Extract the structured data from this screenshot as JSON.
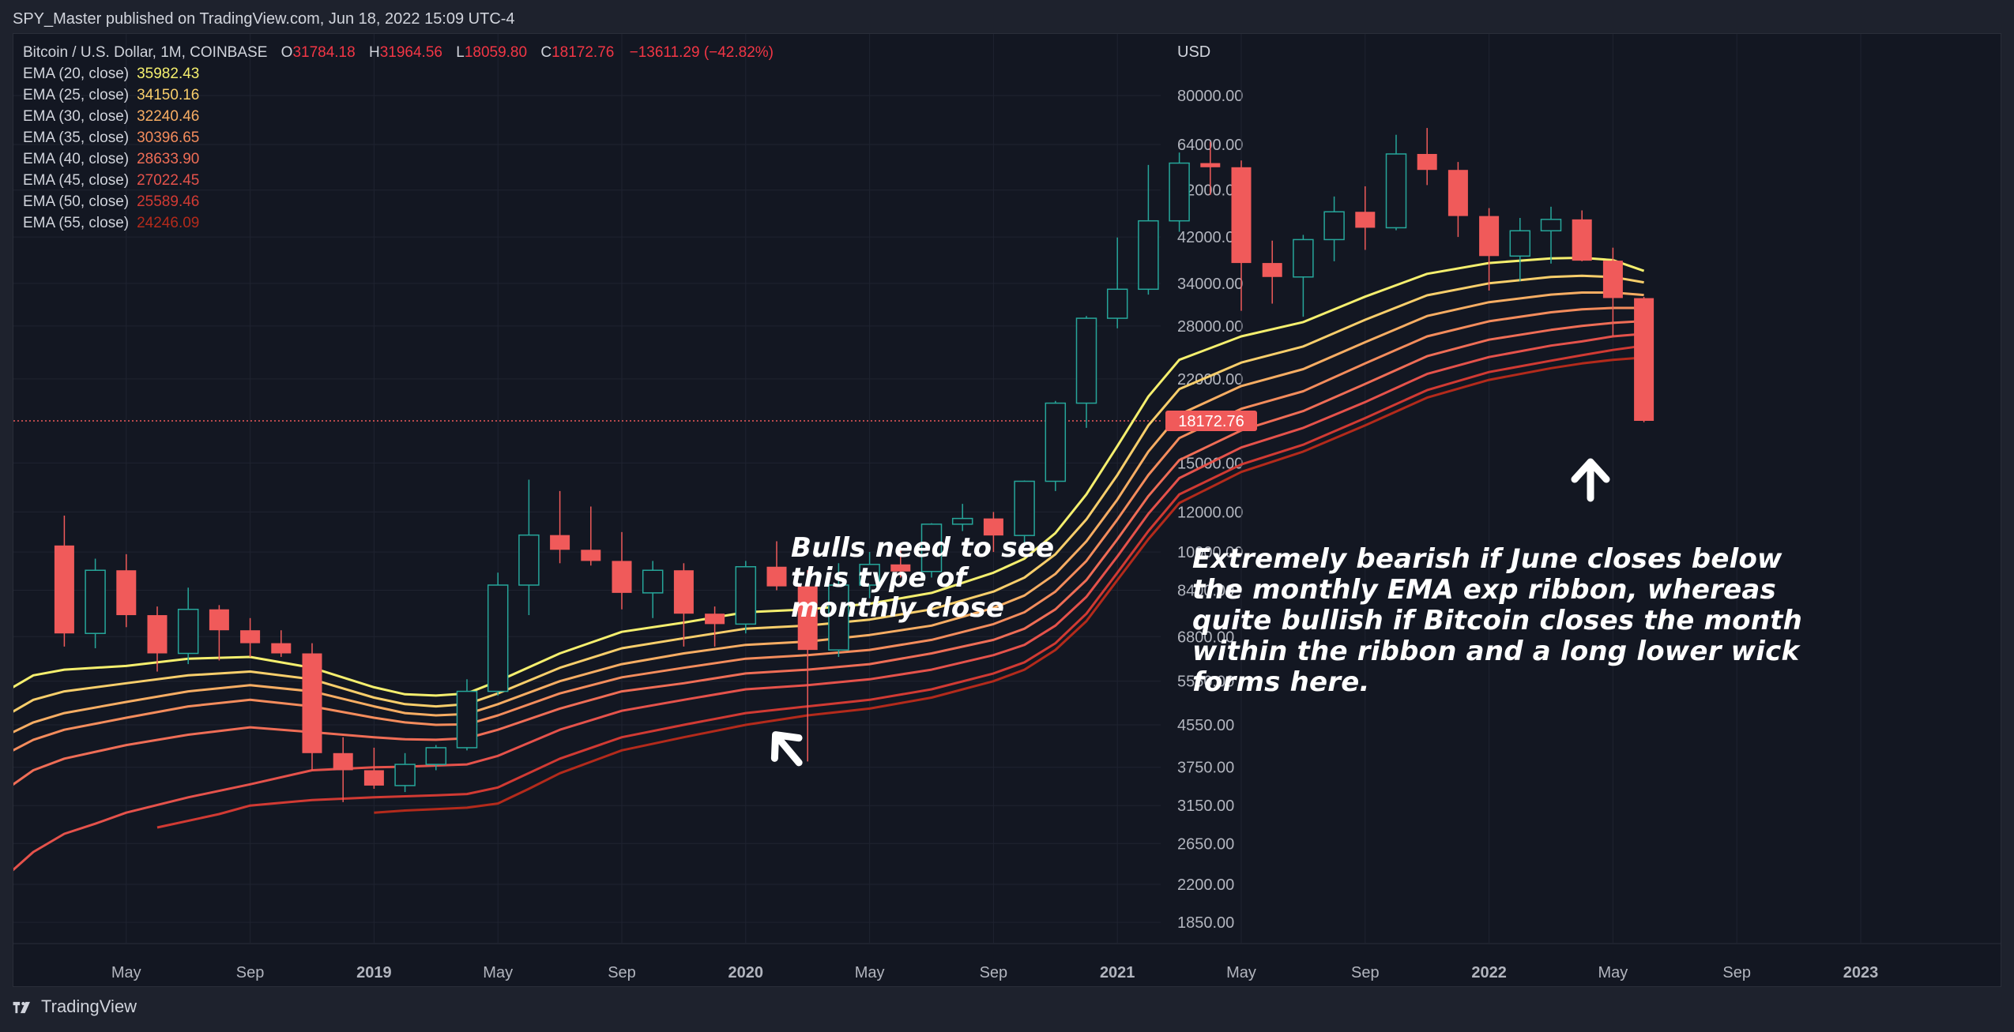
{
  "header": {
    "published": "SPY_Master published on TradingView.com, Jun 18, 2022 15:09 UTC-4"
  },
  "footer": {
    "brand": "TradingView"
  },
  "colors": {
    "background": "#131722",
    "grid": "#1f2330",
    "text": "#d1d4dc",
    "up_candle": "#26a69a",
    "down_candle": "#f05a5a",
    "last_price": "#f05a5a"
  },
  "legend": {
    "symbol": "Bitcoin / U.S. Dollar, 1M, COINBASE",
    "o_key": "O",
    "o_val": "31784.18",
    "h_key": "H",
    "h_val": "31964.56",
    "l_key": "L",
    "l_val": "18059.80",
    "c_key": "C",
    "c_val": "18172.76",
    "change": "−13611.29 (−42.82%)",
    "emas": [
      {
        "label": "EMA (20, close)",
        "value": "35982.43",
        "color": "#f5ef6e"
      },
      {
        "label": "EMA (25, close)",
        "value": "34150.16",
        "color": "#f8ce6b"
      },
      {
        "label": "EMA (30, close)",
        "value": "32240.46",
        "color": "#f7ad63"
      },
      {
        "label": "EMA (35, close)",
        "value": "30396.65",
        "color": "#f48c5c"
      },
      {
        "label": "EMA (40, close)",
        "value": "28633.90",
        "color": "#ef6d56"
      },
      {
        "label": "EMA (45, close)",
        "value": "27022.45",
        "color": "#e5524b"
      },
      {
        "label": "EMA (50, close)",
        "value": "25589.46",
        "color": "#d13a33"
      },
      {
        "label": "EMA (55, close)",
        "value": "24246.09",
        "color": "#b32a1b"
      }
    ]
  },
  "annotations": {
    "bulls": "Bulls need to see this type of monthly close",
    "bearish": "Extremely bearish if June closes below the monthly EMA exp ribbon, whereas quite bullish if Bitcoin closes the month within the ribbon and a long lower wick forms here."
  },
  "chart_data": {
    "type": "candlestick",
    "title": "Bitcoin / U.S. Dollar, 1M, COINBASE",
    "y_scale": "log",
    "y_unit": "USD",
    "ylim": [
      1600,
      95000
    ],
    "y_ticks": [
      "80000.00",
      "64000.00",
      "52000.00",
      "42000.00",
      "34000.00",
      "28000.00",
      "22000.00",
      "15000.00",
      "12000.00",
      "10000.00",
      "8400.00",
      "6800.00",
      "5550.00",
      "4550.00",
      "3750.00",
      "3150.00",
      "2650.00",
      "2200.00",
      "1850.00"
    ],
    "x_ticks": [
      {
        "t": 4,
        "label": "May",
        "bold": false
      },
      {
        "t": 8,
        "label": "Sep",
        "bold": false
      },
      {
        "t": 12,
        "label": "2019",
        "bold": true
      },
      {
        "t": 16,
        "label": "May",
        "bold": false
      },
      {
        "t": 20,
        "label": "Sep",
        "bold": false
      },
      {
        "t": 24,
        "label": "2020",
        "bold": true
      },
      {
        "t": 28,
        "label": "May",
        "bold": false
      },
      {
        "t": 32,
        "label": "Sep",
        "bold": false
      },
      {
        "t": 36,
        "label": "2021",
        "bold": true
      },
      {
        "t": 40,
        "label": "May",
        "bold": false
      },
      {
        "t": 44,
        "label": "Sep",
        "bold": false
      },
      {
        "t": 48,
        "label": "2022",
        "bold": true
      },
      {
        "t": 52,
        "label": "May",
        "bold": false
      },
      {
        "t": 56,
        "label": "Sep",
        "bold": false
      },
      {
        "t": 60,
        "label": "2023",
        "bold": true
      }
    ],
    "last_price": "18172.76",
    "candles": [
      {
        "t": 2,
        "o": 10300,
        "h": 11800,
        "l": 6500,
        "c": 6900
      },
      {
        "t": 3,
        "o": 6900,
        "h": 9700,
        "l": 6450,
        "c": 9200
      },
      {
        "t": 4,
        "o": 9200,
        "h": 9900,
        "l": 7100,
        "c": 7500
      },
      {
        "t": 5,
        "o": 7500,
        "h": 7800,
        "l": 5800,
        "c": 6300
      },
      {
        "t": 6,
        "o": 6300,
        "h": 8500,
        "l": 6000,
        "c": 7700
      },
      {
        "t": 7,
        "o": 7700,
        "h": 7850,
        "l": 6100,
        "c": 7000
      },
      {
        "t": 8,
        "o": 7000,
        "h": 7400,
        "l": 6200,
        "c": 6600
      },
      {
        "t": 9,
        "o": 6600,
        "h": 7000,
        "l": 6200,
        "c": 6300
      },
      {
        "t": 10,
        "o": 6300,
        "h": 6600,
        "l": 3700,
        "c": 4000
      },
      {
        "t": 11,
        "o": 4000,
        "h": 4300,
        "l": 3200,
        "c": 3700
      },
      {
        "t": 12,
        "o": 3700,
        "h": 4100,
        "l": 3400,
        "c": 3450
      },
      {
        "t": 13,
        "o": 3450,
        "h": 4000,
        "l": 3350,
        "c": 3800
      },
      {
        "t": 14,
        "o": 3800,
        "h": 4150,
        "l": 3700,
        "c": 4100
      },
      {
        "t": 15,
        "o": 4100,
        "h": 5600,
        "l": 4050,
        "c": 5300
      },
      {
        "t": 16,
        "o": 5300,
        "h": 9100,
        "l": 5200,
        "c": 8600
      },
      {
        "t": 17,
        "o": 8600,
        "h": 13900,
        "l": 7500,
        "c": 10800
      },
      {
        "t": 18,
        "o": 10800,
        "h": 13200,
        "l": 9500,
        "c": 10100
      },
      {
        "t": 19,
        "o": 10100,
        "h": 12300,
        "l": 9400,
        "c": 9600
      },
      {
        "t": 20,
        "o": 9600,
        "h": 10950,
        "l": 7700,
        "c": 8300
      },
      {
        "t": 21,
        "o": 8300,
        "h": 9600,
        "l": 7400,
        "c": 9200
      },
      {
        "t": 22,
        "o": 9200,
        "h": 9500,
        "l": 6500,
        "c": 7550
      },
      {
        "t": 23,
        "o": 7550,
        "h": 7800,
        "l": 6500,
        "c": 7200
      },
      {
        "t": 24,
        "o": 7200,
        "h": 9600,
        "l": 6900,
        "c": 9350
      },
      {
        "t": 25,
        "o": 9350,
        "h": 10500,
        "l": 8400,
        "c": 8550
      },
      {
        "t": 26,
        "o": 8550,
        "h": 9200,
        "l": 3850,
        "c": 6400
      },
      {
        "t": 27,
        "o": 6400,
        "h": 9500,
        "l": 6200,
        "c": 8600
      },
      {
        "t": 28,
        "o": 8600,
        "h": 10000,
        "l": 8100,
        "c": 9450
      },
      {
        "t": 29,
        "o": 9450,
        "h": 10400,
        "l": 8900,
        "c": 9150
      },
      {
        "t": 30,
        "o": 9150,
        "h": 11400,
        "l": 8900,
        "c": 11350
      },
      {
        "t": 31,
        "o": 11350,
        "h": 12450,
        "l": 11000,
        "c": 11650
      },
      {
        "t": 32,
        "o": 11650,
        "h": 12000,
        "l": 10000,
        "c": 10780
      },
      {
        "t": 33,
        "o": 10780,
        "h": 13850,
        "l": 10400,
        "c": 13800
      },
      {
        "t": 34,
        "o": 13800,
        "h": 19900,
        "l": 13200,
        "c": 19700
      },
      {
        "t": 35,
        "o": 19700,
        "h": 29300,
        "l": 17600,
        "c": 29000
      },
      {
        "t": 36,
        "o": 29000,
        "h": 41900,
        "l": 27700,
        "c": 33100
      },
      {
        "t": 37,
        "o": 33100,
        "h": 58300,
        "l": 32300,
        "c": 45200
      },
      {
        "t": 38,
        "o": 45200,
        "h": 61700,
        "l": 43000,
        "c": 58800
      },
      {
        "t": 39,
        "o": 58800,
        "h": 64800,
        "l": 50900,
        "c": 57700
      },
      {
        "t": 40,
        "o": 57700,
        "h": 59500,
        "l": 30000,
        "c": 37300
      },
      {
        "t": 41,
        "o": 37300,
        "h": 41300,
        "l": 31000,
        "c": 35000
      },
      {
        "t": 42,
        "o": 35000,
        "h": 42400,
        "l": 29200,
        "c": 41500
      },
      {
        "t": 43,
        "o": 41500,
        "h": 50500,
        "l": 37600,
        "c": 47100
      },
      {
        "t": 44,
        "o": 47100,
        "h": 52900,
        "l": 39600,
        "c": 43800
      },
      {
        "t": 45,
        "o": 43800,
        "h": 66900,
        "l": 43300,
        "c": 61300
      },
      {
        "t": 46,
        "o": 61300,
        "h": 69000,
        "l": 53200,
        "c": 57000
      },
      {
        "t": 47,
        "o": 57000,
        "h": 59100,
        "l": 42000,
        "c": 46200
      },
      {
        "t": 48,
        "o": 46200,
        "h": 47900,
        "l": 32900,
        "c": 38500
      },
      {
        "t": 49,
        "o": 38500,
        "h": 45800,
        "l": 34300,
        "c": 43200
      },
      {
        "t": 50,
        "o": 43200,
        "h": 48200,
        "l": 37200,
        "c": 45500
      },
      {
        "t": 51,
        "o": 45500,
        "h": 47400,
        "l": 37600,
        "c": 37700
      },
      {
        "t": 52,
        "o": 37700,
        "h": 40000,
        "l": 26700,
        "c": 31800
      },
      {
        "t": 53,
        "o": 31784.18,
        "h": 31964.56,
        "l": 18059.8,
        "c": 18172.76
      }
    ],
    "series": [
      {
        "name": "EMA (20, close)",
        "color": "#f5ef6e",
        "t": [
          0,
          1,
          2,
          4,
          6,
          8,
          10,
          12,
          13,
          14,
          15,
          16,
          18,
          20,
          22,
          24,
          26,
          28,
          30,
          32,
          33,
          34,
          35,
          36,
          37,
          38,
          40,
          42,
          44,
          46,
          48,
          50,
          51,
          52,
          53
        ],
        "values": [
          5250,
          5700,
          5850,
          5950,
          6150,
          6200,
          5900,
          5400,
          5230,
          5200,
          5250,
          5550,
          6300,
          6950,
          7250,
          7600,
          7700,
          7900,
          8300,
          9100,
          9700,
          10900,
          13000,
          16200,
          20300,
          24000,
          26700,
          28500,
          32000,
          35500,
          37300,
          38100,
          38200,
          37800,
          35982.43
        ]
      },
      {
        "name": "EMA (25, close)",
        "color": "#f8ce6b",
        "t": [
          0,
          1,
          2,
          4,
          6,
          8,
          10,
          12,
          13,
          14,
          15,
          16,
          18,
          20,
          22,
          24,
          26,
          28,
          30,
          32,
          33,
          34,
          35,
          36,
          37,
          38,
          40,
          42,
          44,
          46,
          48,
          50,
          51,
          52,
          53
        ],
        "values": [
          4700,
          5100,
          5300,
          5500,
          5700,
          5800,
          5600,
          5150,
          5000,
          4950,
          5000,
          5250,
          5900,
          6450,
          6750,
          7050,
          7150,
          7350,
          7700,
          8350,
          8900,
          9900,
          11600,
          14200,
          17800,
          21000,
          23700,
          25500,
          28800,
          32200,
          34000,
          35000,
          35200,
          35000,
          34150.16
        ]
      },
      {
        "name": "EMA (30, close)",
        "color": "#f7ad63",
        "t": [
          0,
          1,
          2,
          4,
          6,
          8,
          10,
          12,
          13,
          14,
          15,
          16,
          18,
          20,
          22,
          24,
          26,
          28,
          30,
          32,
          33,
          34,
          35,
          36,
          37,
          38,
          40,
          42,
          44,
          46,
          48,
          50,
          51,
          52,
          53
        ],
        "values": [
          4300,
          4600,
          4800,
          5050,
          5300,
          5450,
          5300,
          4950,
          4800,
          4750,
          4780,
          5000,
          5550,
          6000,
          6300,
          6550,
          6650,
          6850,
          7150,
          7750,
          8200,
          9050,
          10500,
          12700,
          15800,
          18700,
          21300,
          23000,
          26000,
          29300,
          31200,
          32300,
          32600,
          32600,
          32240.46
        ]
      },
      {
        "name": "EMA (35, close)",
        "color": "#f48c5c",
        "t": [
          0,
          1,
          2,
          4,
          6,
          8,
          10,
          12,
          13,
          14,
          15,
          16,
          18,
          20,
          22,
          24,
          26,
          28,
          30,
          32,
          33,
          34,
          35,
          36,
          37,
          38,
          40,
          42,
          44,
          46,
          48,
          50,
          51,
          52,
          53
        ],
        "values": [
          3950,
          4250,
          4450,
          4700,
          4950,
          5100,
          4950,
          4700,
          4600,
          4550,
          4560,
          4750,
          5250,
          5650,
          5900,
          6150,
          6250,
          6400,
          6700,
          7200,
          7600,
          8350,
          9600,
          11600,
          14200,
          16800,
          19200,
          20800,
          23600,
          26700,
          28600,
          29800,
          30200,
          30400,
          30396.65
        ]
      },
      {
        "name": "EMA (40, close)",
        "color": "#ef6d56",
        "t": [
          0,
          1,
          2,
          4,
          6,
          8,
          10,
          12,
          13,
          14,
          15,
          16,
          18,
          20,
          22,
          24,
          26,
          28,
          30,
          32,
          33,
          34,
          35,
          36,
          37,
          38,
          40,
          42,
          44,
          46,
          48,
          50,
          51,
          52,
          53
        ],
        "values": [
          3350,
          3700,
          3900,
          4150,
          4350,
          4500,
          4400,
          4300,
          4260,
          4250,
          4280,
          4450,
          4900,
          5300,
          5500,
          5750,
          5850,
          6000,
          6300,
          6700,
          7050,
          7700,
          8800,
          10600,
          12900,
          15200,
          17400,
          19000,
          21500,
          24400,
          26300,
          27500,
          28000,
          28400,
          28633.9
        ]
      },
      {
        "name": "EMA (45, close)",
        "color": "#e5524b",
        "t": [
          0,
          1,
          2,
          3,
          4,
          6,
          8,
          10,
          12,
          13,
          14,
          15,
          16,
          18,
          20,
          22,
          24,
          26,
          28,
          30,
          32,
          33,
          34,
          35,
          36,
          37,
          38,
          40,
          42,
          44,
          46,
          48,
          50,
          51,
          52,
          53
        ],
        "values": [
          2250,
          2550,
          2770,
          2900,
          3050,
          3270,
          3470,
          3700,
          3750,
          3760,
          3780,
          3800,
          3950,
          4450,
          4850,
          5100,
          5350,
          5450,
          5600,
          5850,
          6250,
          6550,
          7150,
          8150,
          9800,
          11900,
          14000,
          16100,
          17600,
          19800,
          22500,
          24300,
          25600,
          26100,
          26700,
          27022.45
        ]
      },
      {
        "name": "EMA (50, close)",
        "color": "#d13a33",
        "t": [
          5,
          7,
          8,
          10,
          12,
          13,
          14,
          15,
          16,
          18,
          20,
          22,
          24,
          26,
          28,
          30,
          32,
          33,
          34,
          35,
          36,
          37,
          38,
          40,
          42,
          44,
          46,
          48,
          50,
          51,
          52,
          53
        ],
        "values": [
          2850,
          3030,
          3150,
          3230,
          3270,
          3285,
          3300,
          3320,
          3420,
          3900,
          4300,
          4550,
          4800,
          4950,
          5100,
          5350,
          5750,
          6050,
          6600,
          7550,
          9100,
          11000,
          13000,
          14900,
          16300,
          18400,
          20900,
          22700,
          23900,
          24500,
          25100,
          25589.46
        ]
      },
      {
        "name": "EMA (55, close)",
        "color": "#b32a1b",
        "t": [
          12,
          13,
          14,
          15,
          16,
          17,
          18,
          20,
          22,
          24,
          26,
          28,
          30,
          32,
          33,
          34,
          35,
          36,
          37,
          38,
          40,
          42,
          44,
          46,
          48,
          50,
          51,
          52,
          53
        ],
        "values": [
          3050,
          3080,
          3100,
          3120,
          3180,
          3400,
          3650,
          4050,
          4300,
          4550,
          4750,
          4900,
          5150,
          5550,
          5850,
          6400,
          7300,
          8800,
          10600,
          12500,
          14400,
          15800,
          17800,
          20200,
          21900,
          23100,
          23600,
          24000,
          24246.09
        ]
      }
    ]
  }
}
